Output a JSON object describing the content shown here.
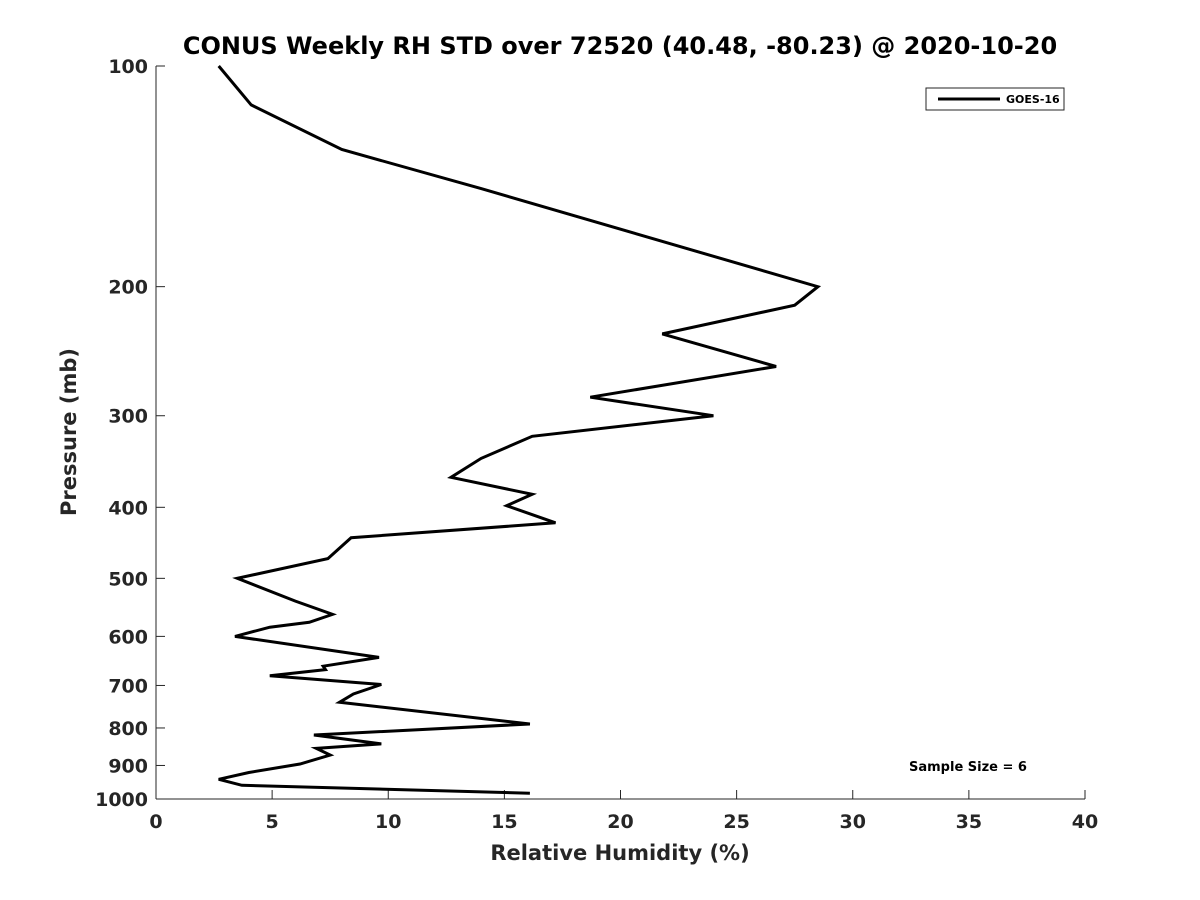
{
  "chart_data": {
    "type": "line",
    "title": "CONUS Weekly RH STD over 72520 (40.48, -80.23) @ 2020-10-20",
    "xlabel": "Relative Humidity (%)",
    "ylabel": "Pressure (mb)",
    "xlim": [
      0,
      40
    ],
    "ylim": [
      100,
      1000
    ],
    "yscale": "log",
    "y_reversed": true,
    "x_ticks": [
      0,
      5,
      10,
      15,
      20,
      25,
      30,
      35,
      40
    ],
    "y_ticks": [
      100,
      200,
      300,
      400,
      500,
      600,
      700,
      800,
      900,
      1000
    ],
    "legend_position": "top-right",
    "grid": false,
    "series": [
      {
        "name": "GOES-16",
        "color": "#000000",
        "x": [
          2.7,
          4.1,
          8.0,
          14.0,
          28.5,
          27.5,
          21.8,
          26.7,
          18.7,
          24.0,
          16.2,
          14.0,
          12.7,
          16.2,
          15.1,
          17.2,
          8.4,
          7.4,
          3.5,
          6.0,
          7.6,
          6.6,
          4.9,
          3.4,
          9.6,
          7.2,
          7.3,
          4.9,
          9.7,
          8.5,
          7.9,
          16.1,
          6.8,
          9.7,
          6.9,
          7.5,
          6.2,
          4.0,
          2.7,
          3.7,
          16.1
        ],
        "y": [
          100,
          113,
          130,
          147,
          200,
          212,
          232,
          257,
          283,
          300,
          320,
          343,
          364,
          384,
          398,
          420,
          440,
          470,
          500,
          537,
          560,
          574,
          583,
          600,
          641,
          659,
          666,
          679,
          698,
          719,
          738,
          790,
          818,
          841,
          853,
          871,
          896,
          920,
          940,
          958,
          982
        ]
      }
    ],
    "annotations": [
      "Sample Size = 6"
    ]
  }
}
